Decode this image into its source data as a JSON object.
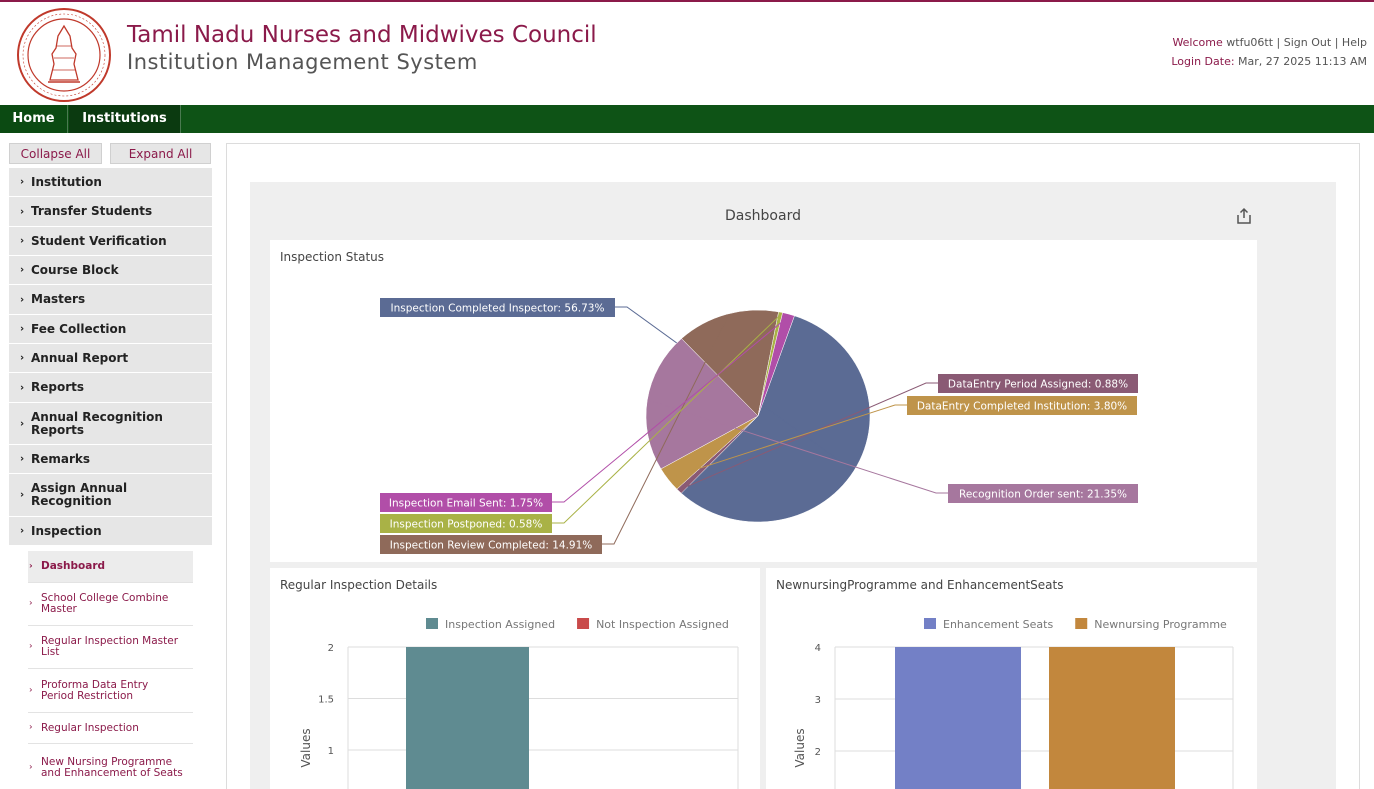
{
  "header": {
    "title": "Tamil Nadu Nurses and Midwives Council",
    "subtitle": "Institution Management System",
    "welcome_label": "Welcome",
    "username": "wtfu06tt",
    "sep1": "|",
    "sign_out": "Sign Out",
    "sep2": "|",
    "help": "Help",
    "login_label": "Login Date:",
    "login_date": "Mar, 27 2025 11:13 AM"
  },
  "nav": {
    "home": "Home",
    "institutions": "Institutions"
  },
  "sidebar": {
    "collapse_all": "Collapse All",
    "expand_all": "Expand All",
    "menu": [
      {
        "label": "Institution"
      },
      {
        "label": "Transfer Students"
      },
      {
        "label": "Student Verification"
      },
      {
        "label": "Course Block"
      },
      {
        "label": "Masters"
      },
      {
        "label": "Fee Collection"
      },
      {
        "label": "Annual Report"
      },
      {
        "label": "Reports"
      },
      {
        "label": "Annual Recognition Reports"
      },
      {
        "label": "Remarks"
      },
      {
        "label": "Assign Annual Recognition"
      },
      {
        "label": "Inspection"
      }
    ],
    "submenu": [
      {
        "label": "Dashboard"
      },
      {
        "label": "School College Combine Master"
      },
      {
        "label": "Regular Inspection Master List"
      },
      {
        "label": "Proforma Data Entry Period Restriction"
      },
      {
        "label": "Regular Inspection"
      },
      {
        "label": "New Nursing Programme and Enhancement of Seats"
      }
    ],
    "chevron": "›"
  },
  "dashboard": {
    "title": "Dashboard",
    "export_icon": "share-export-icon"
  },
  "chart_data": [
    {
      "type": "pie",
      "title": "Inspection Status",
      "slices": [
        {
          "label": "Inspection Completed Inspector: 56.73%",
          "value": 56.73,
          "color": "#5b6b94"
        },
        {
          "label": "DataEntry Period Assigned: 0.88%",
          "value": 0.88,
          "color": "#8a5a74"
        },
        {
          "label": "DataEntry Completed Institution: 3.80%",
          "value": 3.8,
          "color": "#bf944a"
        },
        {
          "label": "Recognition Order sent: 21.35%",
          "value": 21.35,
          "color": "#a6779e"
        },
        {
          "label": "Inspection Review Completed: 14.91%",
          "value": 14.91,
          "color": "#8f6a5a"
        },
        {
          "label": "Inspection Postponed: 0.58%",
          "value": 0.58,
          "color": "#a9b246"
        },
        {
          "label": "Inspection Email Sent: 1.75%",
          "value": 1.75,
          "color": "#b14ea8"
        }
      ]
    },
    {
      "type": "bar",
      "title": "Regular Inspection Details",
      "ylabel": "Values",
      "ylim": [
        0,
        2
      ],
      "ticks": [
        "2",
        "1.5",
        "1"
      ],
      "series": [
        {
          "name": "Inspection Assigned",
          "values": [
            2
          ],
          "color": "#5f8b91"
        },
        {
          "name": "Not Inspection Assigned",
          "values": [
            0
          ],
          "color": "#c94a4a"
        }
      ]
    },
    {
      "type": "bar",
      "title": "NewnursingProgramme and EnhancementSeats",
      "ylabel": "Values",
      "ylim": [
        0,
        4
      ],
      "ticks": [
        "4",
        "3",
        "2"
      ],
      "series": [
        {
          "name": "Enhancement Seats",
          "values": [
            4
          ],
          "color": "#7380c6"
        },
        {
          "name": "Newnursing Programme",
          "values": [
            4
          ],
          "color": "#c2873d"
        }
      ]
    }
  ]
}
